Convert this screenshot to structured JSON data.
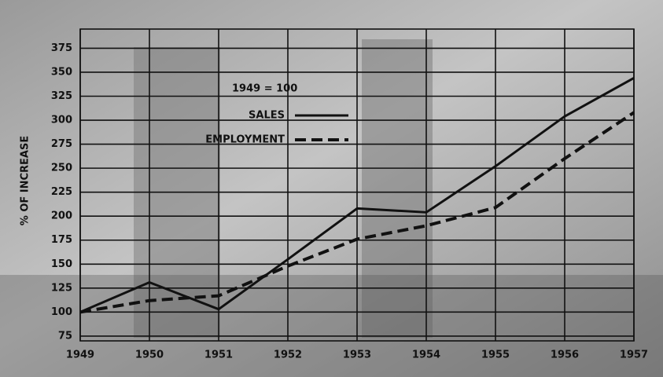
{
  "chart_data": {
    "type": "line",
    "y_label": "% OF INCREASE",
    "legend_note": "1949 = 100",
    "x": [
      1949,
      1950,
      1951,
      1952,
      1953,
      1954,
      1955,
      1956,
      1957
    ],
    "xlim": [
      1949,
      1957
    ],
    "xticks": [
      1949,
      1950,
      1951,
      1952,
      1953,
      1954,
      1955,
      1956,
      1957
    ],
    "ylim": [
      70,
      395
    ],
    "yticks": [
      75,
      100,
      125,
      150,
      175,
      200,
      225,
      250,
      275,
      300,
      325,
      350,
      375
    ],
    "grid": true,
    "series": [
      {
        "name": "SALES",
        "color": "#111111",
        "dash": "solid",
        "values": [
          100,
          131,
          103,
          155,
          208,
          204,
          252,
          304,
          344
        ]
      },
      {
        "name": "EMPLOYMENT",
        "color": "#111111",
        "dash": "dashed",
        "values": [
          100,
          112,
          117,
          148,
          176,
          190,
          209,
          260,
          308
        ]
      }
    ]
  }
}
